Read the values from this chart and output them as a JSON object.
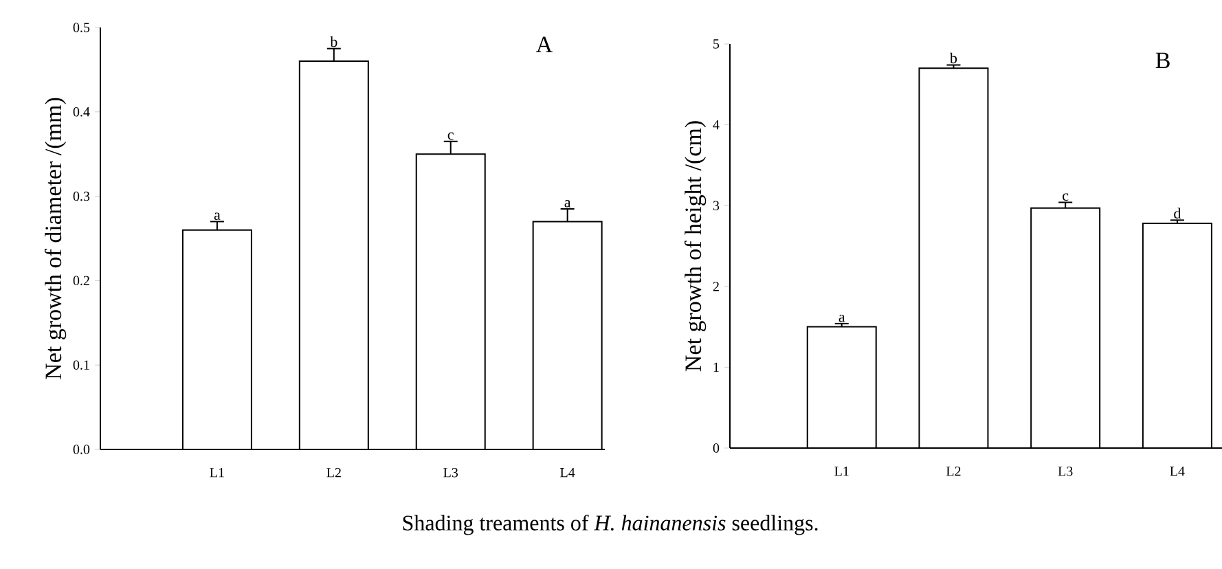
{
  "chart_data": [
    {
      "type": "bar",
      "title": "A",
      "xlabel": "Shading treaments of *H. hainanensis* seedlings.",
      "ylabel": "Net growth of diameter /(mm)",
      "categories": [
        "L1",
        "L2",
        "L3",
        "L4"
      ],
      "values": [
        0.26,
        0.46,
        0.35,
        0.27
      ],
      "color": "#ffffff",
      "errors": [
        [
          0.26,
          0.27
        ],
        [
          0.46,
          0.475
        ],
        [
          0.35,
          0.365
        ],
        [
          0.27,
          0.285
        ]
      ],
      "ylim": [
        0,
        0.5
      ],
      "yticks": [
        {
          "value": 0,
          "label": "0.0"
        },
        0.1,
        0.2,
        0.3,
        0.4,
        0.5
      ],
      "annotations": [
        {
          "text": "a",
          "x": "L1",
          "y": 0.27
        },
        {
          "text": "b",
          "x": "L2",
          "y": 0.475
        },
        {
          "text": "c",
          "x": "L3",
          "y": 0.365
        },
        {
          "text": "a",
          "x": "L4",
          "y": 0.285
        }
      ]
    },
    {
      "type": "bar",
      "title": "B",
      "ylabel": "Net growth of height /(cm)",
      "categories": [
        "L1",
        "L2",
        "L3",
        "L4"
      ],
      "values": [
        1.5,
        4.7,
        2.97,
        2.78
      ],
      "color": "#ffffff",
      "errors": [
        [
          1.5,
          1.54
        ],
        [
          4.7,
          4.74
        ],
        [
          2.97,
          3.04
        ],
        [
          2.78,
          2.82
        ]
      ],
      "ylim": [
        0,
        5
      ],
      "yticks": [
        0,
        1,
        2,
        3,
        4,
        5
      ],
      "annotations": [
        {
          "text": "a",
          "x": "L1",
          "y": 1.54
        },
        {
          "text": "b",
          "x": "L2",
          "y": 4.74
        },
        {
          "text": "c",
          "x": "L3",
          "y": 3.04
        },
        {
          "text": "d",
          "x": "L4",
          "y": 2.82
        }
      ]
    }
  ]
}
